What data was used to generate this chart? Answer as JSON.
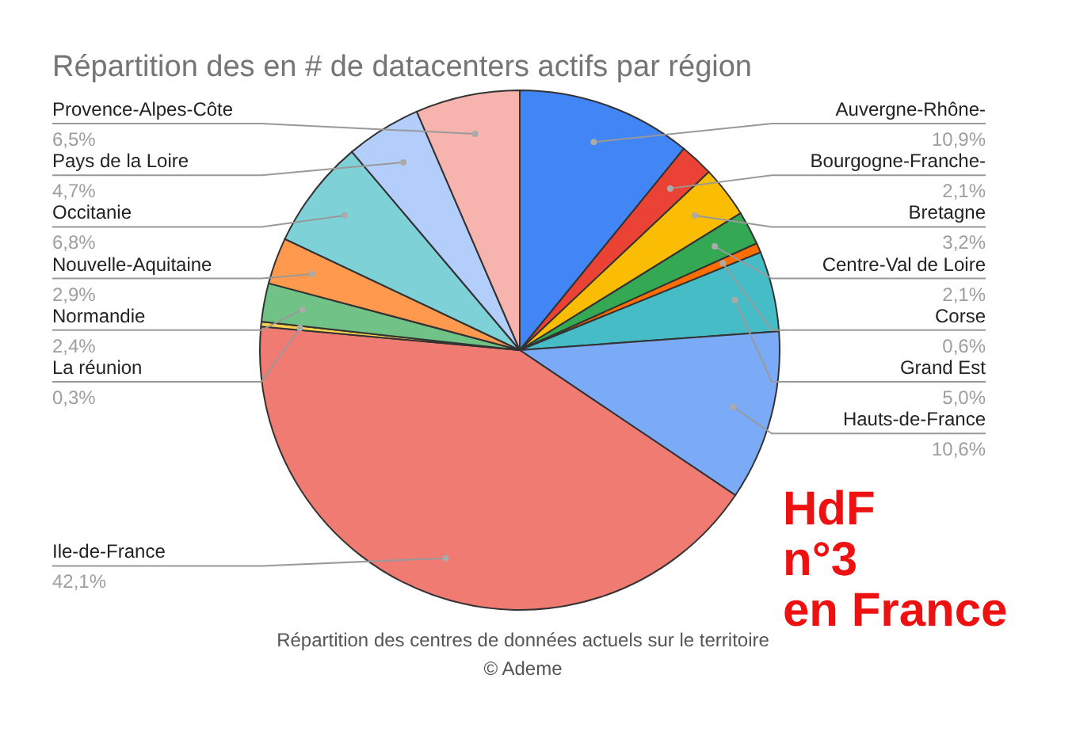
{
  "chart_data": {
    "type": "pie",
    "title": "Répartition des en # de datacenters actifs par région",
    "categories": [
      "Auvergne-Rhône-",
      "Bourgogne-Franche-",
      "Bretagne",
      "Centre-Val de Loire",
      "Corse",
      "Grand Est",
      "Hauts-de-France",
      "Ile-de-France",
      "La réunion",
      "Normandie",
      "Nouvelle-Aquitaine",
      "Occitanie",
      "Pays de la Loire",
      "Provence-Alpes-Côte"
    ],
    "values": [
      10.9,
      2.1,
      3.2,
      2.1,
      0.6,
      5.0,
      10.6,
      42.1,
      0.3,
      2.4,
      2.9,
      6.8,
      4.7,
      6.5
    ],
    "value_labels": [
      "10,9%",
      "2,1%",
      "3,2%",
      "2,1%",
      "0,6%",
      "5,0%",
      "10,6%",
      "42,1%",
      "0,3%",
      "2,4%",
      "2,9%",
      "6,8%",
      "4,7%",
      "6,5%"
    ],
    "colors": [
      "#4285f4",
      "#ea4335",
      "#fbbc04",
      "#34a853",
      "#ff6d01",
      "#46bdc6",
      "#7baaf7",
      "#f07b72",
      "#fcd04f",
      "#71c287",
      "#ff994d",
      "#7ed1d7",
      "#b3cefb",
      "#f7b4ae"
    ],
    "annotations": [
      "Répartition des centres de données actuels sur le territoire",
      "© Ademe",
      "HdF\nn°3\nen France"
    ]
  }
}
